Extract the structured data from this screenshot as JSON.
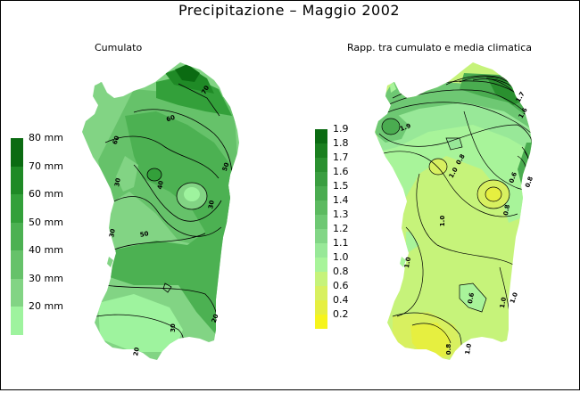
{
  "title": "Precipitazione  –  Maggio 2002",
  "left_map": {
    "subtitle": "Cumulato",
    "legend": [
      {
        "label": "80  mm",
        "color": "#0b6b12"
      },
      {
        "label": "70  mm",
        "color": "#1f8a26"
      },
      {
        "label": "60  mm",
        "color": "#33a03a"
      },
      {
        "label": "50  mm",
        "color": "#4cb152"
      },
      {
        "label": "40  mm",
        "color": "#66c26a"
      },
      {
        "label": "30  mm",
        "color": "#82d484"
      },
      {
        "label": "20  mm",
        "color": "#9ef39e"
      }
    ],
    "contour_labels": [
      "70",
      "60",
      "60",
      "50",
      "30",
      "40",
      "30",
      "50",
      "30",
      "20",
      "30",
      "20"
    ]
  },
  "right_map": {
    "subtitle": "Rapp. tra cumulato e media climatica",
    "legend": [
      {
        "label": "1.9",
        "color": "#0b6b12"
      },
      {
        "label": "1.8",
        "color": "#1a7f1f"
      },
      {
        "label": "1.7",
        "color": "#2a902f"
      },
      {
        "label": "1.6",
        "color": "#3a9e40"
      },
      {
        "label": "1.5",
        "color": "#4aac50"
      },
      {
        "label": "1.4",
        "color": "#5cba60"
      },
      {
        "label": "1.3",
        "color": "#6ec873"
      },
      {
        "label": "1.2",
        "color": "#82d686"
      },
      {
        "label": "1.1",
        "color": "#98e898"
      },
      {
        "label": "1.0",
        "color": "#a8f49a"
      },
      {
        "label": "0.8",
        "color": "#c6f37a"
      },
      {
        "label": "0.6",
        "color": "#d8f060"
      },
      {
        "label": "0.4",
        "color": "#e6ef40"
      },
      {
        "label": "0.2",
        "color": "#f6f41c"
      }
    ],
    "contour_labels": [
      "1.7",
      "1.6",
      "1.9",
      "0.8",
      "1.0",
      "0.6",
      "0.8",
      "1.0",
      "0.8",
      "1.0",
      "0.6",
      "1.0",
      "1.0",
      "0.8",
      "1.0"
    ]
  }
}
